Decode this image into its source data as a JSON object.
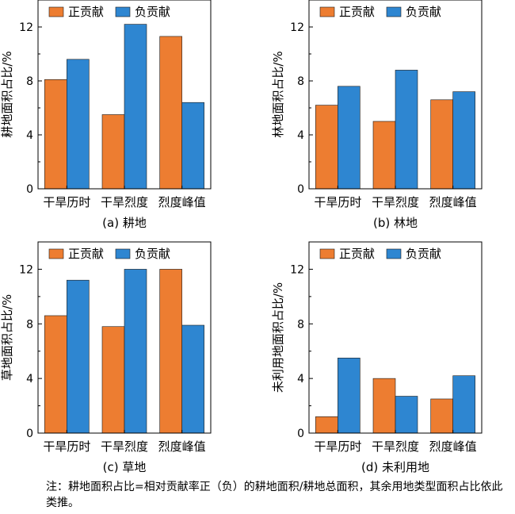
{
  "colors": {
    "positive": "#ED7D31",
    "negative": "#2E86D1",
    "frame": "#000000"
  },
  "chart_data": [
    {
      "type": "bar",
      "caption": "(a) 耕地",
      "ylabel": "耕地面积占比/%",
      "categories": [
        "干旱历时",
        "干旱烈度",
        "烈度峰值"
      ],
      "series": [
        {
          "name": "正贡献",
          "values": [
            8.1,
            5.5,
            11.3
          ]
        },
        {
          "name": "负贡献",
          "values": [
            9.6,
            12.2,
            6.4
          ]
        }
      ],
      "yticks": [
        0,
        4,
        8,
        12
      ],
      "ylim": [
        0,
        14
      ]
    },
    {
      "type": "bar",
      "caption": "(b) 林地",
      "ylabel": "林地面积占比/%",
      "categories": [
        "干旱历时",
        "干旱烈度",
        "烈度峰值"
      ],
      "series": [
        {
          "name": "正贡献",
          "values": [
            6.2,
            5.0,
            6.6
          ]
        },
        {
          "name": "负贡献",
          "values": [
            7.6,
            8.8,
            7.2
          ]
        }
      ],
      "yticks": [
        0,
        4,
        8,
        12
      ],
      "ylim": [
        0,
        14
      ]
    },
    {
      "type": "bar",
      "caption": "(c) 草地",
      "ylabel": "草地面积占比/%",
      "categories": [
        "干旱历时",
        "干旱烈度",
        "烈度峰值"
      ],
      "series": [
        {
          "name": "正贡献",
          "values": [
            8.6,
            7.8,
            12.0
          ]
        },
        {
          "name": "负贡献",
          "values": [
            11.2,
            12.0,
            7.9
          ]
        }
      ],
      "yticks": [
        0,
        4,
        8,
        12
      ],
      "ylim": [
        0,
        14
      ]
    },
    {
      "type": "bar",
      "caption": "(d) 未利用地",
      "ylabel": "未利用地面积占比/%",
      "categories": [
        "干旱历时",
        "干旱烈度",
        "烈度峰值"
      ],
      "series": [
        {
          "name": "正贡献",
          "values": [
            1.2,
            4.0,
            2.5
          ]
        },
        {
          "name": "负贡献",
          "values": [
            5.5,
            2.7,
            4.2
          ]
        }
      ],
      "yticks": [
        0,
        4,
        8,
        12
      ],
      "ylim": [
        0,
        14
      ]
    }
  ],
  "note": "注：耕地面积占比=相对贡献率正（负）的耕地面积/耕地总面积，其余用地类型面积占比依此类推。"
}
